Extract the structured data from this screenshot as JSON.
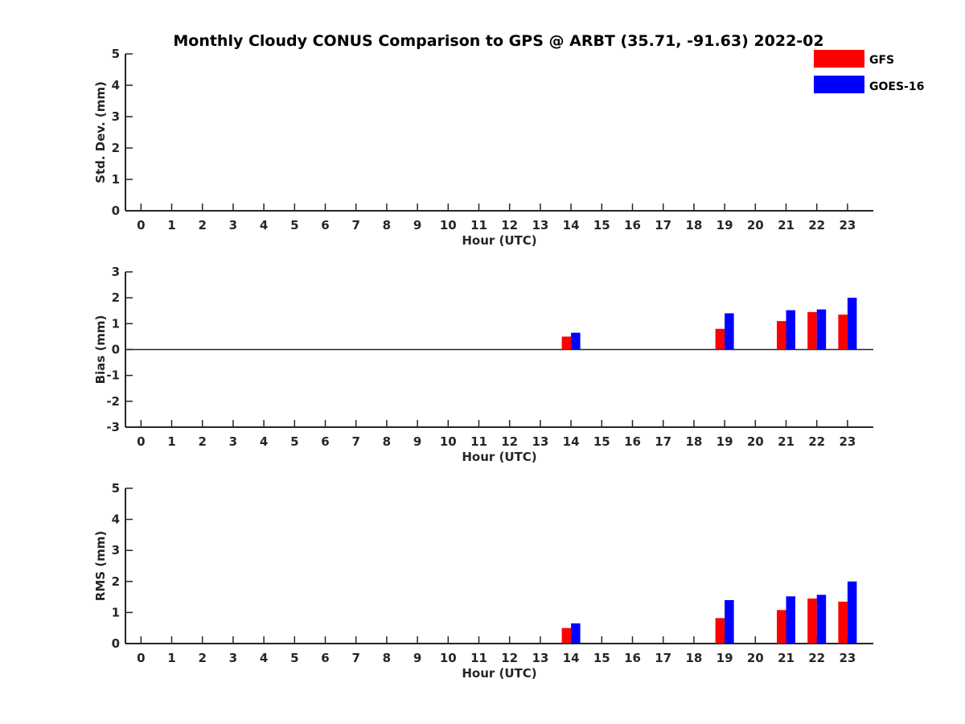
{
  "chart_data": {
    "type": "bar",
    "title": "Monthly Cloudy CONUS Comparison to GPS @ ARBT (35.71, -91.63) 2022-02",
    "legend": [
      {
        "name": "GFS",
        "color": "#ff0000"
      },
      {
        "name": "GOES-16",
        "color": "#0000ff"
      }
    ],
    "categories": [
      "0",
      "1",
      "2",
      "3",
      "4",
      "5",
      "6",
      "7",
      "8",
      "9",
      "10",
      "11",
      "12",
      "13",
      "14",
      "15",
      "16",
      "17",
      "18",
      "19",
      "20",
      "21",
      "22",
      "23"
    ],
    "panels": [
      {
        "id": "std",
        "ylabel": "Std. Dev. (mm)",
        "xlabel": "Hour (UTC)",
        "ylim": [
          0,
          5
        ],
        "yticks": [
          "0",
          "1",
          "2",
          "3",
          "4",
          "5"
        ],
        "zero_line": false,
        "series": [
          {
            "name": "GFS",
            "values": [
              null,
              null,
              null,
              null,
              null,
              null,
              null,
              null,
              null,
              null,
              null,
              null,
              null,
              null,
              null,
              null,
              null,
              null,
              null,
              null,
              null,
              null,
              null,
              null
            ]
          },
          {
            "name": "GOES-16",
            "values": [
              null,
              null,
              null,
              null,
              null,
              null,
              null,
              null,
              null,
              null,
              null,
              null,
              null,
              null,
              null,
              null,
              null,
              null,
              null,
              null,
              null,
              null,
              null,
              null
            ]
          }
        ]
      },
      {
        "id": "bias",
        "ylabel": "Bias (mm)",
        "xlabel": "Hour (UTC)",
        "ylim": [
          -3,
          3
        ],
        "yticks": [
          "-3",
          "-2",
          "-1",
          "0",
          "1",
          "2",
          "3"
        ],
        "zero_line": true,
        "series": [
          {
            "name": "GFS",
            "values": [
              null,
              null,
              null,
              null,
              null,
              null,
              null,
              null,
              null,
              null,
              null,
              null,
              null,
              null,
              0.5,
              null,
              null,
              null,
              null,
              0.8,
              null,
              1.1,
              1.45,
              1.35
            ]
          },
          {
            "name": "GOES-16",
            "values": [
              null,
              null,
              null,
              null,
              null,
              null,
              null,
              null,
              null,
              null,
              null,
              null,
              null,
              null,
              0.65,
              null,
              null,
              null,
              null,
              1.4,
              null,
              1.52,
              1.55,
              2.0
            ]
          }
        ]
      },
      {
        "id": "rms",
        "ylabel": "RMS (mm)",
        "xlabel": "Hour (UTC)",
        "ylim": [
          0,
          5
        ],
        "yticks": [
          "0",
          "1",
          "2",
          "3",
          "4",
          "5"
        ],
        "zero_line": false,
        "series": [
          {
            "name": "GFS",
            "values": [
              null,
              null,
              null,
              null,
              null,
              null,
              null,
              null,
              null,
              null,
              null,
              null,
              null,
              null,
              0.5,
              null,
              null,
              null,
              null,
              0.82,
              null,
              1.08,
              1.45,
              1.35
            ]
          },
          {
            "name": "GOES-16",
            "values": [
              null,
              null,
              null,
              null,
              null,
              null,
              null,
              null,
              null,
              null,
              null,
              null,
              null,
              null,
              0.65,
              null,
              null,
              null,
              null,
              1.4,
              null,
              1.52,
              1.57,
              2.0
            ]
          }
        ]
      }
    ]
  }
}
